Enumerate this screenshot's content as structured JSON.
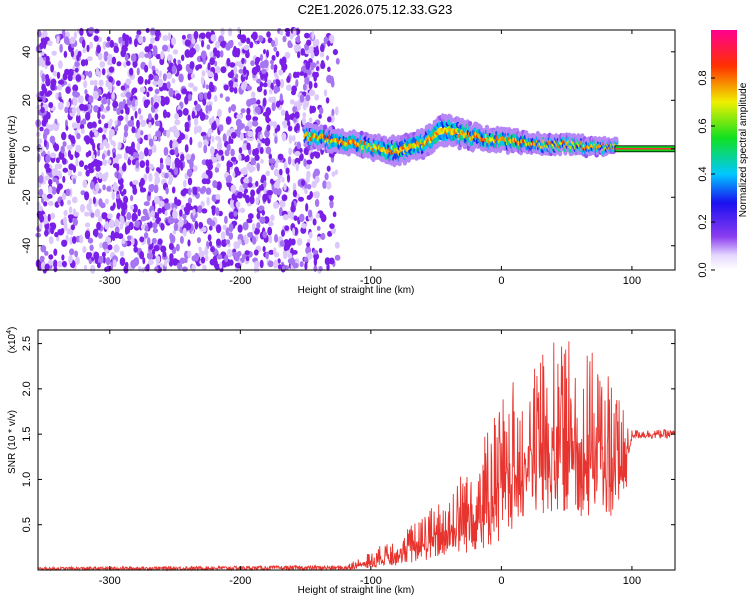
{
  "title": "C2E1.2026.075.12.33.G23",
  "chart_data": [
    {
      "type": "heatmap",
      "name": "spectrogram",
      "xlabel": "Height of straight line (km)",
      "ylabel": "Frequency (Hz)",
      "xlim": [
        -355,
        133
      ],
      "ylim": [
        -50,
        49
      ],
      "xticks": [
        -300,
        -200,
        -100,
        0,
        100
      ],
      "xtick_labels": [
        "-300",
        "-200",
        "-100",
        "0",
        "100"
      ],
      "yticks": [
        -40,
        -20,
        0,
        20,
        40
      ],
      "ytick_labels": [
        "-40",
        "-20",
        "0",
        "20",
        "40"
      ],
      "noise_region_x": [
        -355,
        -125
      ],
      "signal_band": {
        "x": [
          -150,
          -130,
          -110,
          -100,
          -80,
          -60,
          -45,
          -30,
          -10,
          10,
          30,
          50,
          70,
          85,
          133
        ],
        "center_hz": [
          5,
          4,
          2,
          1,
          -1,
          2,
          8,
          6,
          4,
          3,
          2,
          2,
          1,
          1,
          0
        ],
        "half_width_hz": [
          4,
          4,
          4,
          4,
          5,
          5,
          6,
          5,
          4,
          4,
          3,
          3,
          3,
          2,
          1
        ]
      },
      "tone_line": {
        "x": [
          87,
          133
        ],
        "freq_hz": 0
      },
      "colorbar": {
        "label": "Normalized spectral amplitude",
        "range": [
          0,
          1
        ],
        "ticks": [
          0.0,
          0.2,
          0.4,
          0.6,
          0.8
        ],
        "tick_labels": [
          "0.0",
          "0.2",
          "0.4",
          "0.6",
          "0.8"
        ]
      }
    },
    {
      "type": "line",
      "name": "snr",
      "xlabel": "Height of straight line (km)",
      "ylabel": "SNR (10 * v/v)",
      "y_scale_label": "(x10",
      "y_scale_exp": "4",
      "xlim": [
        -355,
        133
      ],
      "ylim": [
        0,
        2.65
      ],
      "xticks": [
        -300,
        -200,
        -100,
        0,
        100
      ],
      "xtick_labels": [
        "-300",
        "-200",
        "-100",
        "0",
        "100"
      ],
      "yticks": [
        0.5,
        1.0,
        1.5,
        2.0,
        2.5
      ],
      "ytick_labels": [
        "0.5",
        "1.0",
        "1.5",
        "2.0",
        "2.5"
      ],
      "series": [
        {
          "name": "SNR",
          "color": "#e8342e",
          "envelope_x": [
            -355,
            -120,
            -100,
            -80,
            -60,
            -40,
            -20,
            0,
            20,
            40,
            60,
            80,
            95,
            100,
            133
          ],
          "envelope_max": [
            0.03,
            0.05,
            0.2,
            0.4,
            0.6,
            0.9,
            1.3,
            1.9,
            2.3,
            2.6,
            2.5,
            2.3,
            1.7,
            1.55,
            1.55
          ],
          "envelope_min": [
            0.0,
            0.0,
            0.02,
            0.05,
            0.1,
            0.15,
            0.2,
            0.3,
            0.5,
            0.6,
            0.6,
            0.5,
            0.8,
            1.45,
            1.45
          ]
        }
      ]
    }
  ]
}
